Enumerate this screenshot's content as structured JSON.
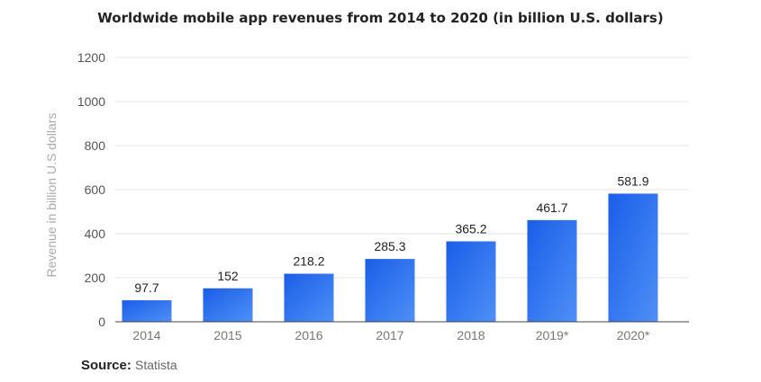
{
  "chart_data": {
    "type": "bar",
    "title": "Worldwide mobile app revenues from 2014 to 2020 (in billion U.S. dollars)",
    "xlabel": "",
    "ylabel": "Revenue in billion U.S dollars",
    "categories": [
      "2014",
      "2015",
      "2016",
      "2017",
      "2018",
      "2019*",
      "2020*"
    ],
    "values": [
      97.7,
      152,
      218.2,
      285.3,
      365.2,
      461.7,
      581.9
    ],
    "data_labels": [
      "97.7",
      "152",
      "218.2",
      "285.3",
      "365.2",
      "461.7",
      "581.9"
    ],
    "ylim": [
      0,
      1200
    ],
    "yticks": [
      0,
      200,
      400,
      600,
      800,
      1000,
      1200
    ],
    "grid": true,
    "bar_color_top": "#1a5ee8",
    "bar_color_bottom": "#4f8ff7"
  },
  "source": {
    "label": "Source:",
    "value": "Statista"
  }
}
